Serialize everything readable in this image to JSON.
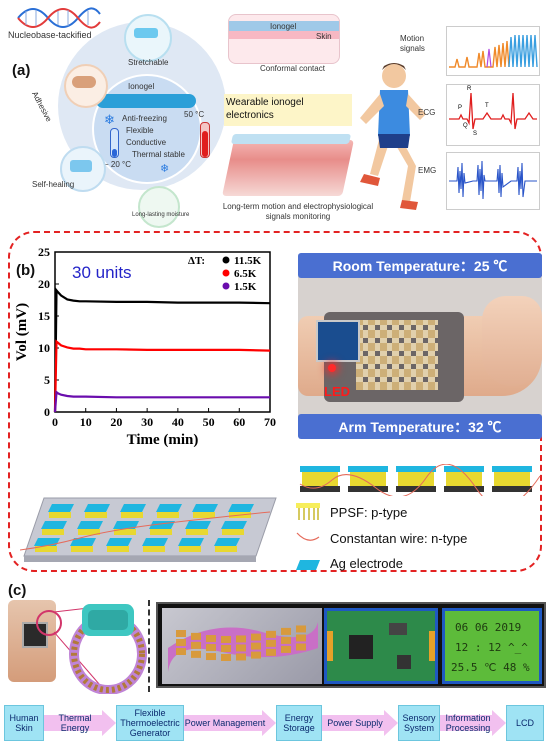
{
  "panel_a": {
    "letter": "(a)",
    "dna_label": "Nucleobase-tackified",
    "stretchable": "Stretchable",
    "adhesive": "Adhesive",
    "ionogel_center": "Ionogel",
    "anti_freezing": "Anti-freezing",
    "flexible": "Flexible",
    "conductive": "Conductive",
    "thermal_stable": "Thermal stable",
    "temp_hot": "50 °C",
    "temp_cold": "− 20 °C",
    "self_healing": "Self-healing",
    "moisture": "Long-lasting moisture",
    "ionogel_top": "Ionogel",
    "skin": "Skin",
    "conformal": "Conformal contact",
    "wearable": "Wearable ionogel electronics",
    "caption": "Long-term motion and electrophysiological signals monitoring",
    "motion_signals": "Motion signals",
    "ecg": "ECG",
    "emg": "EMG",
    "ecg_labels": {
      "p": "P",
      "q": "Q",
      "r": "R",
      "s": "S",
      "t": "T"
    }
  },
  "panel_b": {
    "letter": "(b)",
    "units_label": "30 units",
    "room_temp": "Room Temperature：25 ℃",
    "arm_temp": "Arm Temperature：32 ℃",
    "led_label": "LED",
    "legend": [
      {
        "label": "PPSF: p-type"
      },
      {
        "label": "Constantan wire: n-type"
      },
      {
        "label": "Ag electrode"
      }
    ]
  },
  "chart_data": {
    "type": "line",
    "xlabel": "Time (min)",
    "ylabel": "Vol (mV)",
    "xlim": [
      0,
      70
    ],
    "ylim": [
      0,
      25
    ],
    "xticks": [
      0,
      10,
      20,
      30,
      40,
      50,
      60,
      70
    ],
    "yticks": [
      0,
      5,
      10,
      15,
      20,
      25
    ],
    "legend_title": "ΔT:",
    "series": [
      {
        "name": "11.5K",
        "color": "#000000",
        "x": [
          0,
          0.5,
          1,
          2,
          4,
          6,
          8,
          10,
          20,
          30,
          40,
          50,
          60,
          70
        ],
        "y": [
          0,
          19.0,
          18.7,
          18.2,
          17.6,
          17.4,
          17.3,
          17.3,
          17.2,
          17.2,
          17.1,
          17.1,
          17.1,
          17.0
        ]
      },
      {
        "name": "6.5K",
        "color": "#ff0000",
        "x": [
          0,
          0.5,
          1,
          2,
          4,
          6,
          8,
          10,
          20,
          30,
          40,
          50,
          60,
          70
        ],
        "y": [
          0,
          11.0,
          10.8,
          10.4,
          10.1,
          9.9,
          9.9,
          9.8,
          9.8,
          9.7,
          9.7,
          9.7,
          9.7,
          9.6
        ]
      },
      {
        "name": "1.5K",
        "color": "#6a0dad",
        "x": [
          0,
          0.5,
          1,
          2,
          4,
          6,
          8,
          10,
          20,
          30,
          40,
          50,
          60,
          70
        ],
        "y": [
          0,
          3.1,
          2.9,
          2.7,
          2.5,
          2.4,
          2.4,
          2.4,
          2.3,
          2.3,
          2.3,
          2.3,
          2.3,
          2.3
        ]
      }
    ]
  },
  "panel_c": {
    "letter": "(c)",
    "lcd_line1": "06 06 2019",
    "lcd_line2": "12 : 12  ^_^",
    "lcd_line3": "25.5 ℃ 48 %",
    "flow": [
      "Human Skin",
      "Thermal Energy",
      "Flexible Thermoelectric Generator",
      "Power Management",
      "Energy Storage",
      "Power Supply",
      "Sensory System",
      "Information Processing",
      "LCD"
    ]
  },
  "colors": {
    "dashed_border": "#e32222",
    "flow_box": "#9fe3f4",
    "flow_arrow": "#f2c0ef",
    "temp_bar": "#4a6fd1",
    "lcd_bg": "#5dbb3a"
  }
}
